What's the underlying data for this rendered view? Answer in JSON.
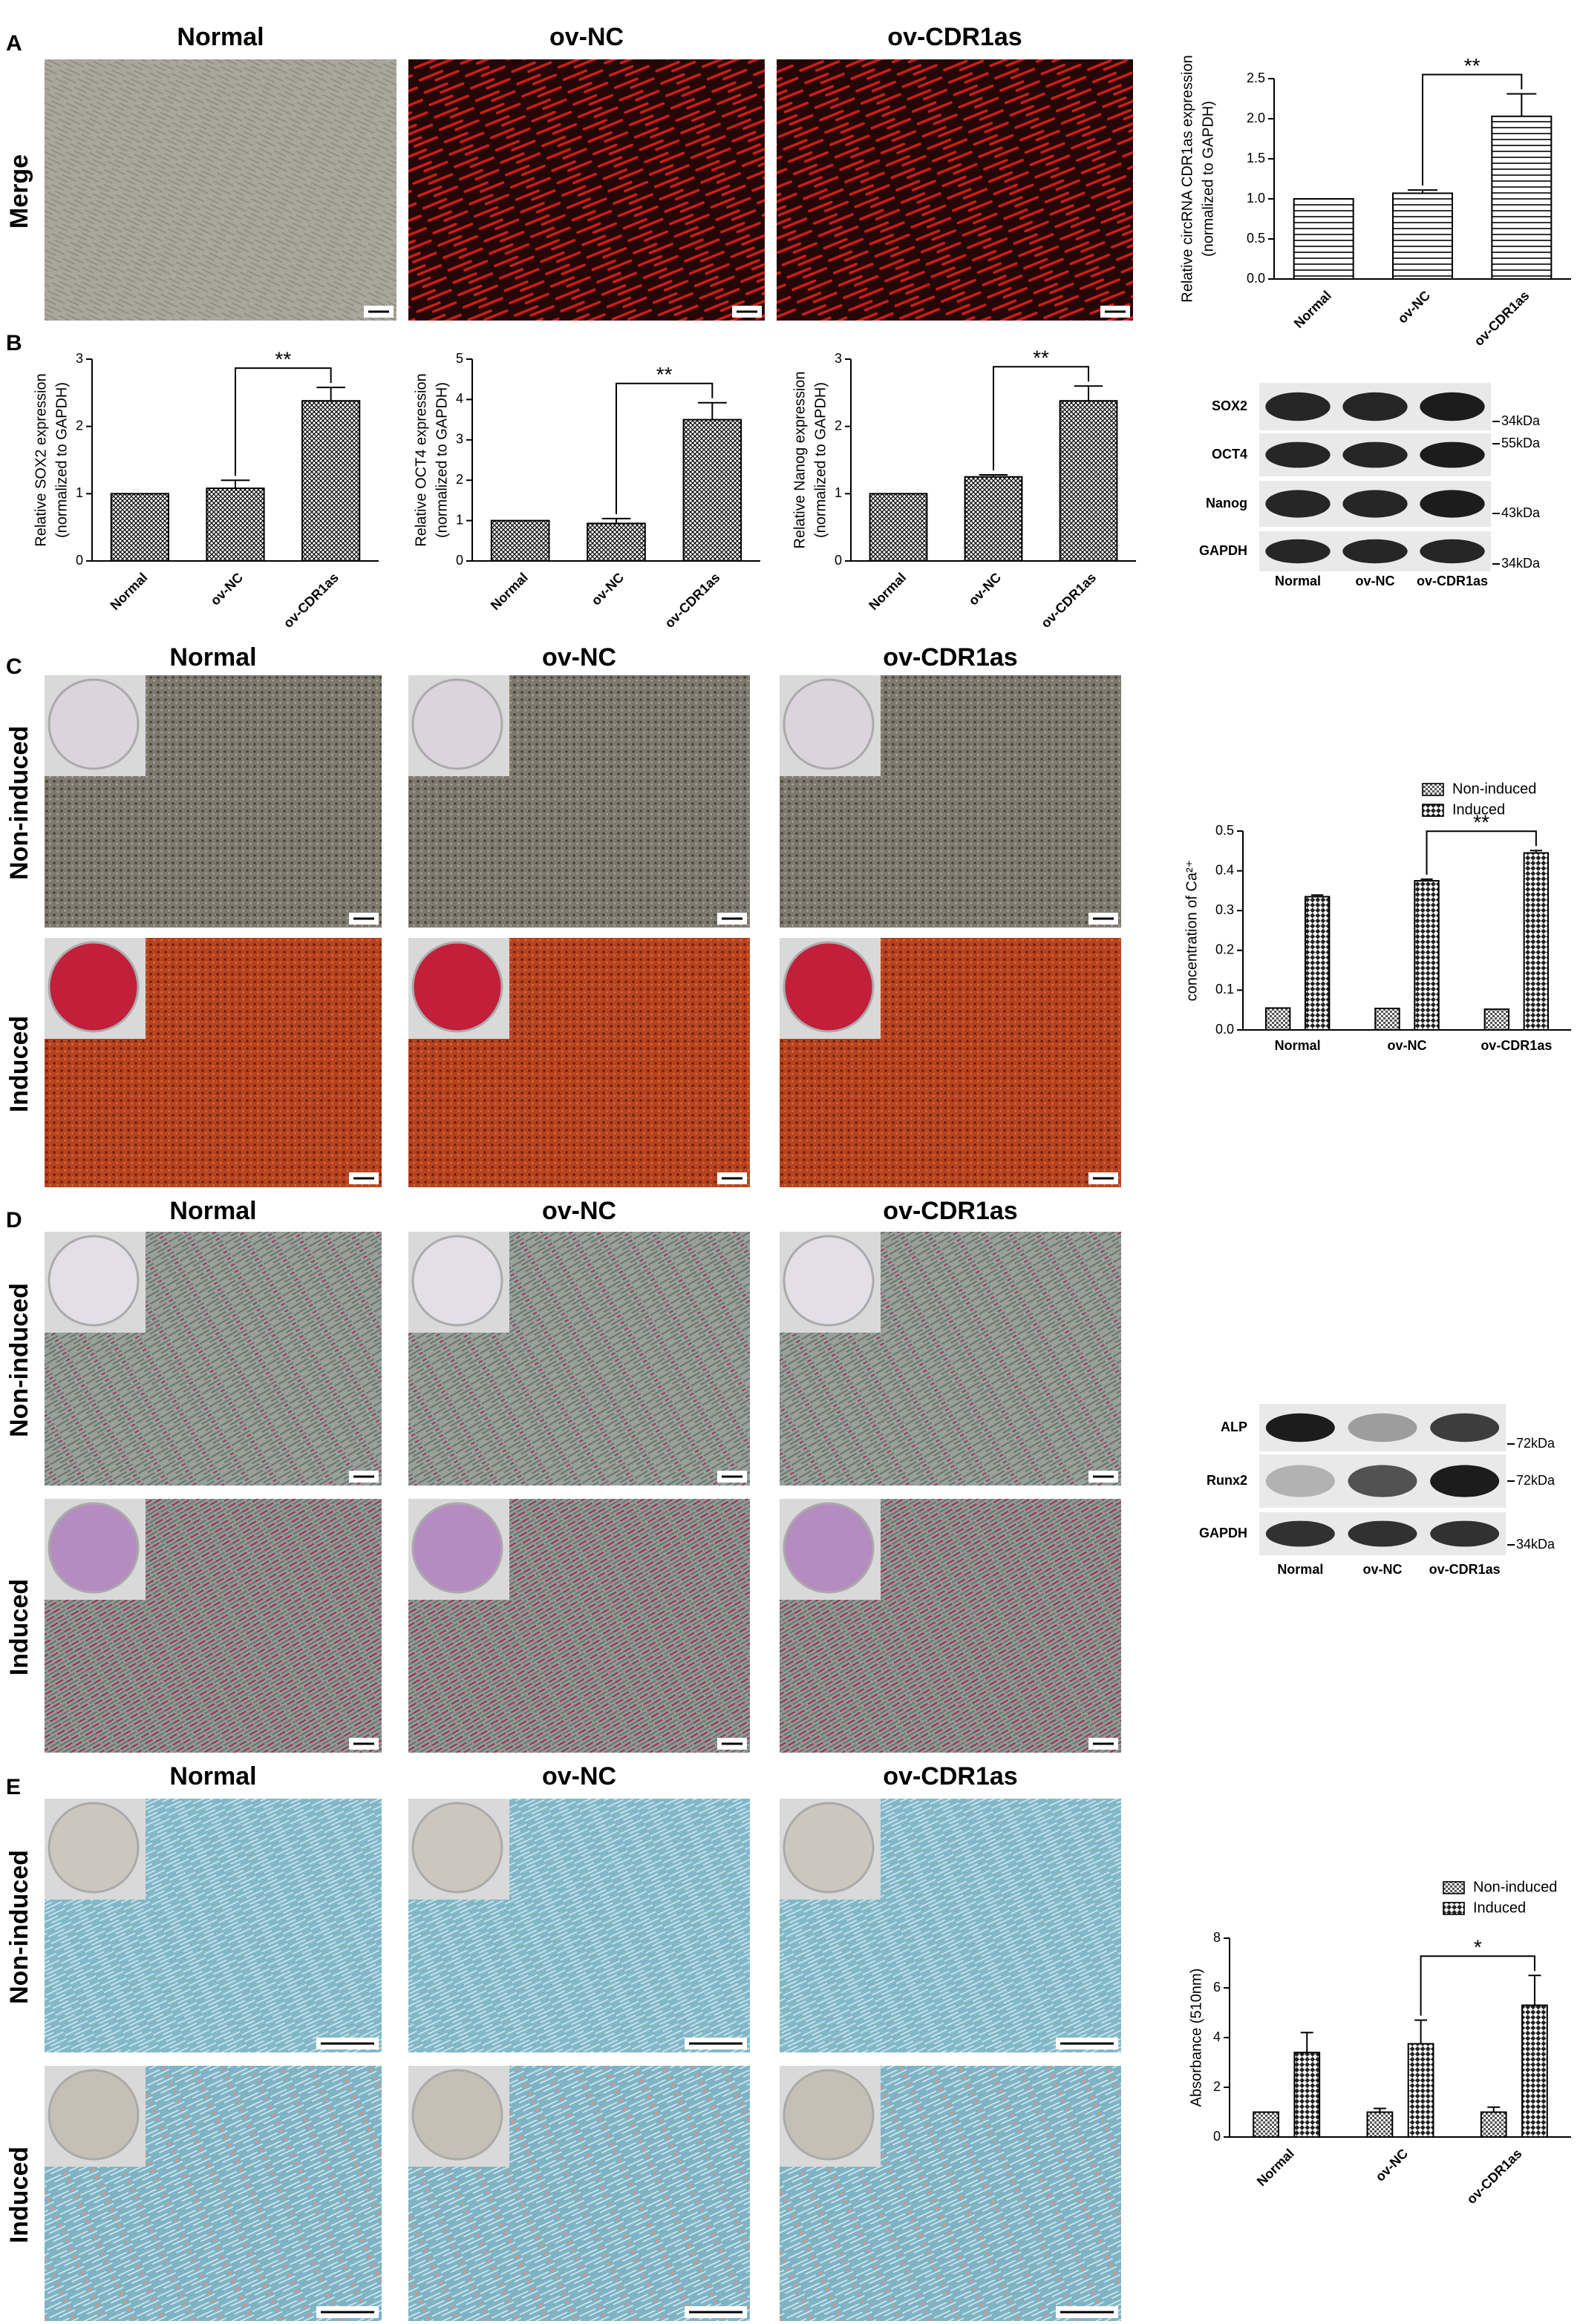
{
  "panels": [
    {
      "letter": "A",
      "columns": [
        "Normal",
        "ov-NC",
        "ov-CDR1as"
      ],
      "rows": [
        "Merge"
      ]
    },
    {
      "letter": "B"
    },
    {
      "letter": "C",
      "columns": [
        "Normal",
        "ov-NC",
        "ov-CDR1as"
      ],
      "rows": [
        "Non-induced",
        "Induced"
      ]
    },
    {
      "letter": "D",
      "columns": [
        "Normal",
        "ov-NC",
        "ov-CDR1as"
      ],
      "rows": [
        "Non-induced",
        "Induced"
      ]
    },
    {
      "letter": "E",
      "columns": [
        "Normal",
        "ov-NC",
        "ov-CDR1as"
      ],
      "rows": [
        "Non-induced",
        "Induced"
      ]
    }
  ],
  "blots": [
    {
      "rows": [
        {
          "label": "SOX2",
          "marker": "34kDa"
        },
        {
          "label": "OCT4",
          "marker": "55kDa"
        },
        {
          "label": "Nanog",
          "marker": "43kDa"
        },
        {
          "label": "GAPDH",
          "marker": "34kDa"
        }
      ],
      "lanes": [
        "Normal",
        "ov-NC",
        "ov-CDR1as"
      ]
    },
    {
      "rows": [
        {
          "label": "ALP",
          "marker": "72kDa"
        },
        {
          "label": "Runx2",
          "marker": "72kDa"
        },
        {
          "label": "GAPDH",
          "marker": "34kDa"
        }
      ],
      "lanes": [
        "Normal",
        "ov-NC",
        "ov-CDR1as"
      ]
    }
  ],
  "chart_data": [
    {
      "type": "bar",
      "ylabel": [
        "Relative circRNA CDR1as expression",
        "(normalized to GAPDH)"
      ],
      "categories": [
        "Normal",
        "ov-NC",
        "ov-CDR1as"
      ],
      "values": [
        1.0,
        1.07,
        2.03
      ],
      "errors": [
        0,
        0.04,
        0.28
      ],
      "pattern": "horizontal-lines",
      "ylim": [
        0,
        2.5
      ],
      "yticks": [
        {
          "value": 0,
          "label": "0.0"
        },
        0.5,
        {
          "value": 1,
          "label": "1.0"
        },
        1.5,
        {
          "value": 2,
          "label": "2.0"
        },
        2.5
      ],
      "annotation": {
        "text": "**",
        "categories": [
          "ov-NC",
          "ov-CDR1as"
        ]
      }
    },
    {
      "type": "bar",
      "ylabel": [
        "Relative SOX2 expression",
        "(normalized to GAPDH)"
      ],
      "categories": [
        "Normal",
        "ov-NC",
        "ov-CDR1as"
      ],
      "values": [
        1.0,
        1.08,
        2.38
      ],
      "errors": [
        0,
        0.12,
        0.2
      ],
      "pattern": "crosshatch",
      "ylim": [
        0,
        3
      ],
      "yticks": [
        0,
        1,
        2,
        3
      ],
      "annotation": {
        "text": "**",
        "categories": [
          "ov-NC",
          "ov-CDR1as"
        ]
      }
    },
    {
      "type": "bar",
      "ylabel": [
        "Relative OCT4 expression",
        "(normalized to GAPDH)"
      ],
      "categories": [
        "Normal",
        "ov-NC",
        "ov-CDR1as"
      ],
      "values": [
        1.0,
        0.93,
        3.5
      ],
      "errors": [
        0,
        0.12,
        0.42
      ],
      "pattern": "crosshatch",
      "ylim": [
        0,
        5
      ],
      "yticks": [
        0,
        1,
        2,
        3,
        4,
        5
      ],
      "annotation": {
        "text": "**",
        "categories": [
          "ov-NC",
          "ov-CDR1as"
        ]
      }
    },
    {
      "type": "bar",
      "ylabel": [
        "Relative Nanog expression",
        "(normalized to GAPDH)"
      ],
      "categories": [
        "Normal",
        "ov-NC",
        "ov-CDR1as"
      ],
      "values": [
        1.0,
        1.25,
        2.38
      ],
      "errors": [
        0,
        0.03,
        0.22
      ],
      "pattern": "crosshatch",
      "ylim": [
        0,
        3
      ],
      "yticks": [
        0,
        1,
        2,
        3
      ],
      "annotation": {
        "text": "**",
        "categories": [
          "ov-NC",
          "ov-CDR1as"
        ]
      }
    },
    {
      "type": "grouped-bar",
      "ylabel": [
        "concentration of Ca²⁺"
      ],
      "categories": [
        "Normal",
        "ov-NC",
        "ov-CDR1as"
      ],
      "series": [
        {
          "name": "Non-induced",
          "pattern": "fine-check",
          "values": [
            0.055,
            0.054,
            0.052
          ],
          "errors": [
            0,
            0,
            0
          ]
        },
        {
          "name": "Induced",
          "pattern": "coarse-check",
          "values": [
            0.335,
            0.375,
            0.445
          ],
          "errors": [
            0.004,
            0.004,
            0.006
          ]
        }
      ],
      "ylim": [
        0,
        0.5
      ],
      "yticks": [
        {
          "value": 0,
          "label": "0.0"
        },
        0.1,
        0.2,
        0.3,
        0.4,
        0.5
      ],
      "legend": "top-right",
      "annotation": {
        "text": "**",
        "categories": [
          "ov-NC",
          "ov-CDR1as"
        ],
        "series": "Induced"
      }
    },
    {
      "type": "grouped-bar",
      "ylabel": [
        "Absorbance (510nm)"
      ],
      "categories": [
        "Normal",
        "ov-NC",
        "ov-CDR1as"
      ],
      "series": [
        {
          "name": "Non-induced",
          "pattern": "fine-check",
          "values": [
            1.0,
            1.0,
            1.0
          ],
          "errors": [
            0,
            0.15,
            0.2
          ]
        },
        {
          "name": "Induced",
          "pattern": "coarse-check",
          "values": [
            3.4,
            3.75,
            5.3
          ],
          "errors": [
            0.8,
            0.95,
            1.2
          ]
        }
      ],
      "ylim": [
        0,
        8
      ],
      "yticks": [
        0,
        2,
        4,
        6,
        8
      ],
      "legend": "top-right",
      "annotation": {
        "text": "*",
        "categories": [
          "ov-NC",
          "ov-CDR1as"
        ],
        "series": "Induced"
      }
    }
  ]
}
